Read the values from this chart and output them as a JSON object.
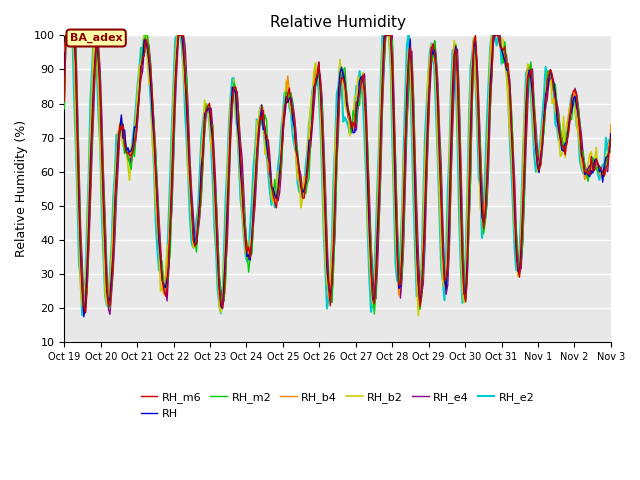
{
  "title": "Relative Humidity",
  "ylabel": "Relative Humidity (%)",
  "ylim": [
    10,
    100
  ],
  "yticks": [
    10,
    20,
    30,
    40,
    50,
    60,
    70,
    80,
    90,
    100
  ],
  "xtick_labels": [
    "Oct 19",
    "Oct 20",
    "Oct 21",
    "Oct 22",
    "Oct 23",
    "Oct 24",
    "Oct 25",
    "Oct 26",
    "Oct 27",
    "Oct 28",
    "Oct 29",
    "Oct 30",
    "Oct 31",
    "Nov 1",
    "Nov 2",
    "Nov 3"
  ],
  "series_names": [
    "RH_m6",
    "RH",
    "RH_m2",
    "RH_b4",
    "RH_b2",
    "RH_e4",
    "RH_e2"
  ],
  "series_colors": [
    "#cc0000",
    "#0000cc",
    "#00cc00",
    "#ff8800",
    "#cccc00",
    "#880088",
    "#00cccc"
  ],
  "series_linewidths": [
    1.0,
    1.0,
    1.0,
    1.0,
    1.2,
    1.0,
    1.5
  ],
  "ba_adex_label": "BA_adex",
  "background_color": "#ffffff",
  "plot_bg_color": "#e8e8e8",
  "grid_color": "#ffffff",
  "num_points": 336,
  "waypoints_t": [
    0.0,
    0.3,
    0.55,
    0.9,
    1.2,
    1.5,
    1.75,
    2.0,
    2.3,
    2.6,
    2.9,
    3.1,
    3.4,
    3.6,
    3.85,
    4.1,
    4.35,
    4.6,
    4.9,
    5.1,
    5.35,
    5.6,
    5.85,
    6.1,
    6.3,
    6.55,
    6.8,
    7.05,
    7.3,
    7.55,
    7.75,
    8.0,
    8.25,
    8.5,
    8.75,
    9.0,
    9.2,
    9.5,
    9.75,
    10.0,
    10.25,
    10.5,
    10.75,
    11.0,
    11.25,
    11.5,
    11.75,
    12.0,
    12.25,
    12.5,
    12.75,
    13.0,
    13.25,
    13.5,
    13.75,
    14.0,
    14.25,
    14.5,
    14.75,
    15.0
  ],
  "waypoints_rh": [
    80,
    98,
    20,
    98,
    22,
    70,
    65,
    76,
    97,
    42,
    40,
    97,
    72,
    38,
    73,
    65,
    20,
    80,
    53,
    35,
    73,
    65,
    53,
    82,
    75,
    54,
    75,
    82,
    22,
    83,
    81,
    75,
    82,
    22,
    90,
    93,
    26,
    95,
    22,
    80,
    82,
    27,
    97,
    22,
    98,
    45,
    97,
    97,
    80,
    30,
    90,
    62,
    85,
    80,
    66,
    83,
    62,
    62,
    60,
    70
  ]
}
